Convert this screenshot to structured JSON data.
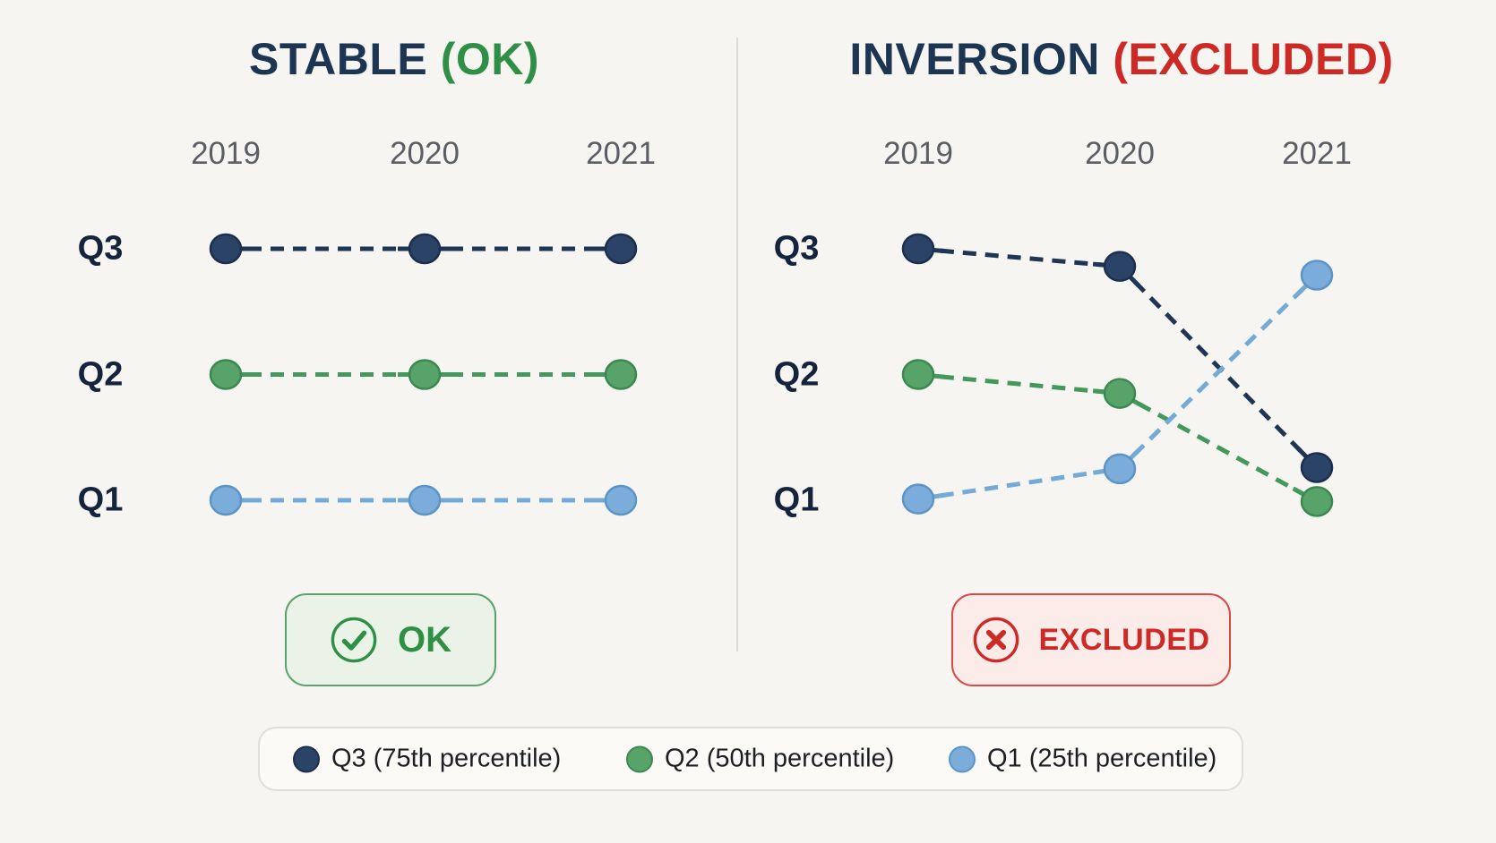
{
  "chart_data": [
    {
      "type": "line",
      "panel": "left",
      "title": "STABLE",
      "title_paren": "(OK)",
      "x": [
        "2019",
        "2020",
        "2021"
      ],
      "row_labels": [
        "Q3",
        "Q2",
        "Q1"
      ],
      "series": [
        {
          "key": "q3",
          "name": "Q3 (75th percentile)",
          "levels": [
            3,
            3,
            3
          ],
          "line": "#1e3554",
          "fill": "#2b4366",
          "edge": "#1c2f4e"
        },
        {
          "key": "q2",
          "name": "Q2 (50th percentile)",
          "levels": [
            2,
            2,
            2
          ],
          "line": "#43995b",
          "fill": "#58a36a",
          "edge": "#3a8950"
        },
        {
          "key": "q1",
          "name": "Q1 (25th percentile)",
          "levels": [
            1,
            1,
            1
          ],
          "line": "#74aad8",
          "fill": "#7cadda",
          "edge": "#5b94c6"
        }
      ]
    },
    {
      "type": "line",
      "panel": "right",
      "title": "INVERSION",
      "title_paren": "(EXCLUDED)",
      "x": [
        "2019",
        "2020",
        "2021"
      ],
      "row_labels": [
        "Q3",
        "Q2",
        "Q1"
      ],
      "series": [
        {
          "key": "q3",
          "name": "Q3 (75th percentile)",
          "levels": [
            3,
            2.86,
            1.26
          ],
          "line": "#1e3554",
          "fill": "#2b4366",
          "edge": "#1c2f4e"
        },
        {
          "key": "q2",
          "name": "Q2 (50th percentile)",
          "levels": [
            2,
            1.85,
            0.99
          ],
          "line": "#43995b",
          "fill": "#58a36a",
          "edge": "#3a8950"
        },
        {
          "key": "q1",
          "name": "Q1 (25th percentile)",
          "levels": [
            1.01,
            1.25,
            2.79
          ],
          "line": "#74aad8",
          "fill": "#7cadda",
          "edge": "#5b94c6"
        }
      ]
    }
  ],
  "badges": [
    {
      "key": "ok",
      "label": "OK",
      "icon": "check-circle-icon"
    },
    {
      "key": "excluded",
      "label": "EXCLUDED",
      "icon": "x-circle-icon"
    }
  ],
  "legend": {
    "items": [
      {
        "key": "q3",
        "label": "Q3 (75th percentile)",
        "fill": "#2b4366",
        "edge": "#1c2f4e"
      },
      {
        "key": "q2",
        "label": "Q2 (50th percentile)",
        "fill": "#58a36a",
        "edge": "#3a8950"
      },
      {
        "key": "q1",
        "label": "Q1 (25th percentile)",
        "fill": "#7cadda",
        "edge": "#5b94c6"
      }
    ]
  },
  "colors": {
    "background": "#f6f5f2",
    "divider": "#dcdad6",
    "title_navy": "#1c3553",
    "ok_green": "#2f9045",
    "excluded_red": "#cd2a26",
    "year_label": "#5b5e64",
    "row_label": "#15243d",
    "ok_badge_bg": "#ebf3e9",
    "ok_badge_border": "#5aa46b",
    "excluded_badge_bg": "#fbecea",
    "excluded_badge_border": "#d84b44",
    "legend_bg": "#fbfaf7",
    "legend_border": "#e1ded9",
    "legend_text": "#1d1f24"
  }
}
